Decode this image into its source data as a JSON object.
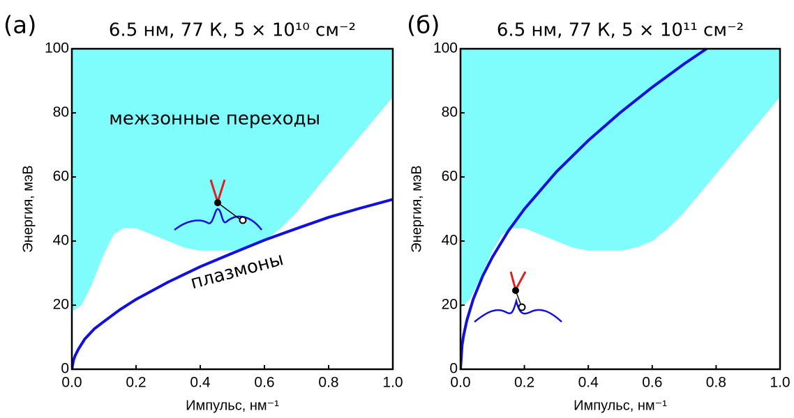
{
  "chart_data": [
    {
      "type": "line",
      "panel": "(а)",
      "title": "6.5 нм, 77 К, 5 × 10¹⁰ см⁻²",
      "x_label": "Импульс, нм⁻¹",
      "y_label": "Энергия, мэВ",
      "annotations": [
        "межзонные переходы",
        "плазмоны"
      ],
      "xlim": [
        0,
        1
      ],
      "ylim": [
        0,
        100
      ],
      "xticks": [
        {
          "value": 0,
          "label": "0.0"
        },
        {
          "value": 0.2,
          "label": "0.2"
        },
        {
          "value": 0.4,
          "label": "0.4"
        },
        {
          "value": 0.6,
          "label": "0.6"
        },
        {
          "value": 0.8,
          "label": "0.8"
        },
        {
          "value": 1,
          "label": "1.0"
        }
      ],
      "yticks": [
        0,
        20,
        40,
        60,
        80,
        100
      ],
      "band": {
        "color": "#7ffcfc",
        "x": [
          0,
          0.03,
          0.06,
          0.1,
          0.13,
          0.16,
          0.2,
          0.25,
          0.3,
          0.35,
          0.4,
          0.45,
          0.5,
          0.55,
          0.6,
          0.65,
          0.7,
          0.75,
          0.8,
          0.85,
          0.9,
          0.95,
          1.0
        ],
        "lower": [
          18,
          20,
          26,
          36,
          42,
          44,
          44,
          42,
          40,
          38,
          37,
          37,
          37,
          38,
          40,
          44,
          49,
          55,
          61,
          67,
          73,
          79,
          85
        ]
      },
      "plasmon": {
        "color": "#1010e0",
        "x": [
          0,
          0.005,
          0.01,
          0.02,
          0.04,
          0.07,
          0.1,
          0.15,
          0.2,
          0.3,
          0.4,
          0.5,
          0.6,
          0.7,
          0.8,
          0.9,
          1.0
        ],
        "values": [
          0,
          2.8,
          4.2,
          6.2,
          9.4,
          12.6,
          14.9,
          18.6,
          21.8,
          27.2,
          32.0,
          36.2,
          40.3,
          43.9,
          47.4,
          50.3,
          53
        ]
      }
    },
    {
      "type": "line",
      "panel": "(б)",
      "title": "6.5 нм, 77 К, 5 × 10¹¹ см⁻²",
      "x_label": "Импульс, нм⁻¹",
      "y_label": "Энергия, мэВ",
      "xlim": [
        0,
        1
      ],
      "ylim": [
        0,
        100
      ],
      "xticks": [
        {
          "value": 0,
          "label": "0.0"
        },
        {
          "value": 0.2,
          "label": "0.2"
        },
        {
          "value": 0.4,
          "label": "0.4"
        },
        {
          "value": 0.6,
          "label": "0.6"
        },
        {
          "value": 0.8,
          "label": "0.8"
        },
        {
          "value": 1,
          "label": "1.0"
        }
      ],
      "yticks": [
        0,
        20,
        40,
        60,
        80,
        100
      ],
      "band": {
        "color": "#7ffcfc",
        "x": [
          0,
          0.03,
          0.06,
          0.1,
          0.13,
          0.16,
          0.2,
          0.25,
          0.3,
          0.35,
          0.4,
          0.45,
          0.5,
          0.55,
          0.6,
          0.65,
          0.7,
          0.75,
          0.8,
          0.85,
          0.9,
          0.95,
          1.0
        ],
        "lower": [
          19,
          22,
          28,
          37,
          42,
          44,
          44,
          42,
          40,
          38,
          37,
          37,
          37,
          38,
          40,
          44,
          49,
          55,
          61,
          67,
          73,
          79,
          85
        ]
      },
      "plasmon": {
        "color": "#1010e0",
        "x": [
          0,
          0.005,
          0.01,
          0.02,
          0.04,
          0.07,
          0.1,
          0.15,
          0.2,
          0.3,
          0.4,
          0.5,
          0.6,
          0.7,
          0.77
        ],
        "values": [
          0,
          7.5,
          10.7,
          15.3,
          21.9,
          29.2,
          35.0,
          43.2,
          50.0,
          61.6,
          71.4,
          80.1,
          88.0,
          95.3,
          100
        ]
      }
    }
  ]
}
